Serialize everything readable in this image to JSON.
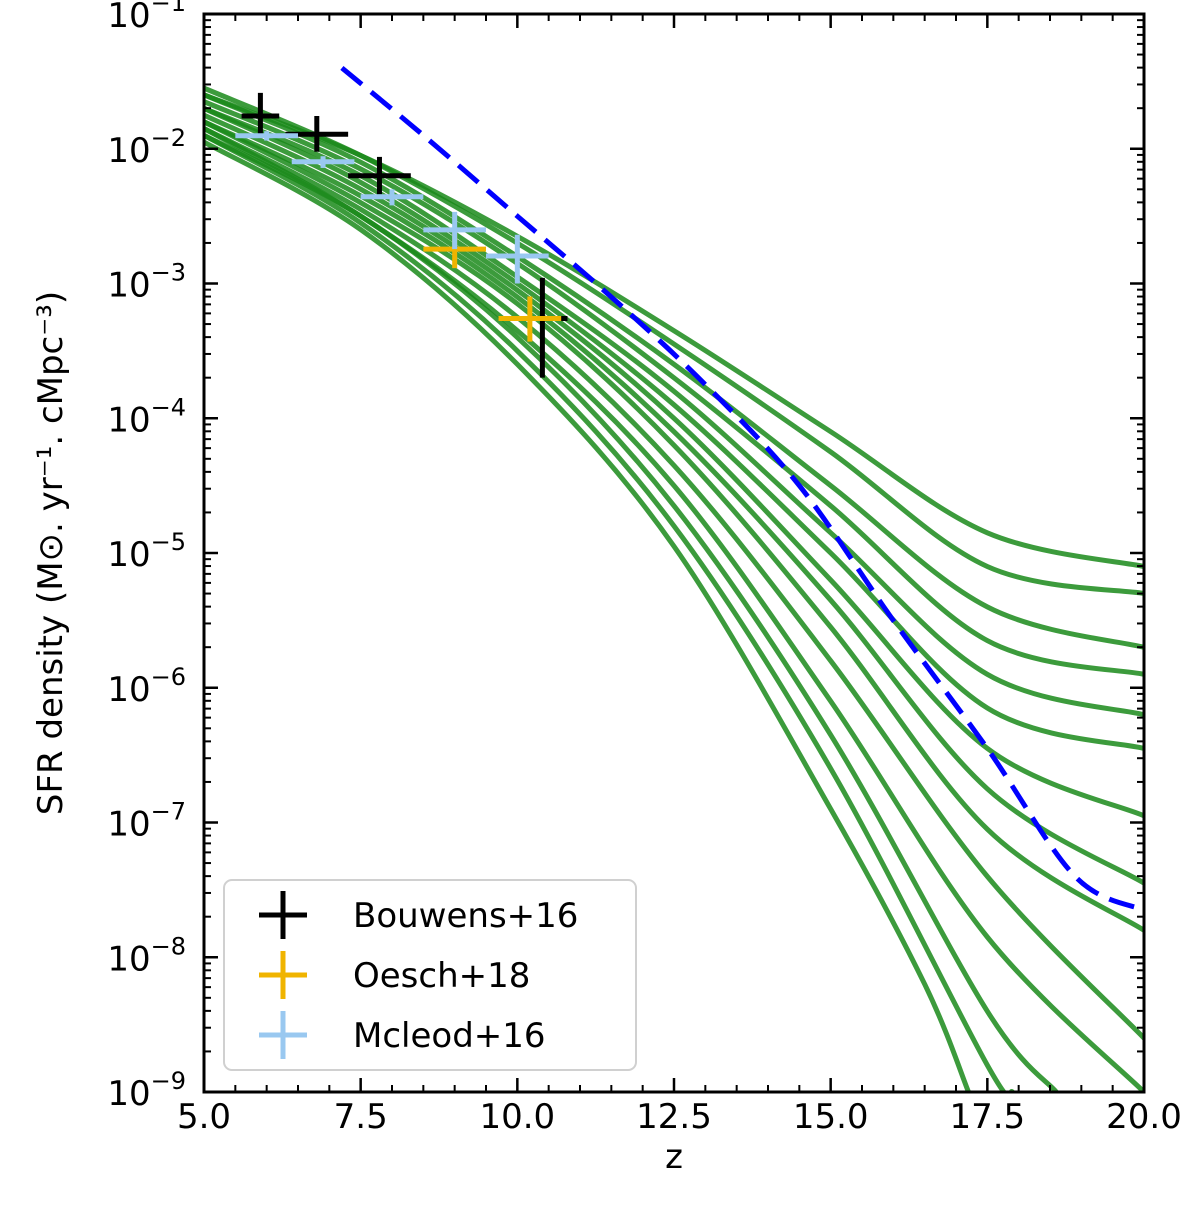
{
  "chart_data": {
    "type": "line",
    "xlabel": "z",
    "ylabel": "SFR density (M⊙. yr⁻¹. cMpc⁻³)",
    "xlim": [
      5.0,
      20.0
    ],
    "ylim_log10": [
      -9,
      -1
    ],
    "yscale": "log",
    "x_ticks": [
      "5.0",
      "7.5",
      "10.0",
      "12.5",
      "15.0",
      "17.5",
      "20.0"
    ],
    "y_ticks": [
      {
        "base": "10",
        "exp": "−1"
      },
      {
        "base": "10",
        "exp": "−2"
      },
      {
        "base": "10",
        "exp": "−3"
      },
      {
        "base": "10",
        "exp": "−4"
      },
      {
        "base": "10",
        "exp": "−5"
      },
      {
        "base": "10",
        "exp": "−6"
      },
      {
        "base": "10",
        "exp": "−7"
      },
      {
        "base": "10",
        "exp": "−8"
      },
      {
        "base": "10",
        "exp": "−9"
      }
    ],
    "legend_placement": "bottom-left",
    "model_color": "#1a8a1a",
    "model_curves_log10": [
      {
        "x": [
          5.0,
          7.5,
          10.0,
          12.5,
          15.0,
          17.5,
          20.0
        ],
        "y": [
          -1.6,
          -2.05,
          -2.65,
          -3.35,
          -4.1,
          -4.85,
          -5.1
        ]
      },
      {
        "x": [
          5.0,
          7.5,
          10.0,
          12.5,
          15.0,
          17.5,
          20.0
        ],
        "y": [
          -1.55,
          -2.05,
          -2.7,
          -3.45,
          -4.25,
          -5.1,
          -5.3
        ]
      },
      {
        "x": [
          5.0,
          7.5,
          10.0,
          12.5,
          15.0,
          17.5,
          20.0
        ],
        "y": [
          -1.6,
          -2.1,
          -2.8,
          -3.6,
          -4.5,
          -5.4,
          -5.7
        ]
      },
      {
        "x": [
          5.0,
          7.5,
          10.0,
          12.5,
          15.0,
          17.5,
          20.0
        ],
        "y": [
          -1.65,
          -2.15,
          -2.85,
          -3.7,
          -4.65,
          -5.65,
          -5.9
        ]
      },
      {
        "x": [
          5.0,
          7.5,
          10.0,
          12.5,
          15.0,
          17.5,
          20.0
        ],
        "y": [
          -1.7,
          -2.2,
          -2.95,
          -3.8,
          -4.85,
          -5.9,
          -6.2
        ]
      },
      {
        "x": [
          5.0,
          7.5,
          10.0,
          12.5,
          15.0,
          17.5,
          20.0
        ],
        "y": [
          -1.7,
          -2.25,
          -3.0,
          -3.9,
          -5.0,
          -6.15,
          -6.45
        ]
      },
      {
        "x": [
          5.0,
          7.5,
          10.0,
          12.5,
          15.0,
          17.5,
          20.0
        ],
        "y": [
          -1.75,
          -2.3,
          -3.05,
          -4.0,
          -5.2,
          -6.45,
          -6.95
        ]
      },
      {
        "x": [
          5.0,
          7.5,
          10.0,
          12.5,
          15.0,
          17.5,
          20.0
        ],
        "y": [
          -1.8,
          -2.35,
          -3.1,
          -4.1,
          -5.35,
          -6.75,
          -7.45
        ]
      },
      {
        "x": [
          5.0,
          7.5,
          10.0,
          12.5,
          15.0,
          17.5,
          20.0
        ],
        "y": [
          -1.8,
          -2.4,
          -3.15,
          -4.2,
          -5.55,
          -7.05,
          -7.8
        ]
      },
      {
        "x": [
          5.0,
          7.5,
          10.0,
          12.5,
          15.0,
          17.5,
          20.0
        ],
        "y": [
          -1.85,
          -2.45,
          -3.25,
          -4.35,
          -5.8,
          -7.4,
          -8.6
        ]
      },
      {
        "x": [
          5.0,
          7.5,
          10.0,
          12.5,
          15.0,
          17.5,
          20.0
        ],
        "y": [
          -1.85,
          -2.5,
          -3.35,
          -4.5,
          -6.1,
          -7.85,
          -9.0
        ]
      },
      {
        "x": [
          5.0,
          7.5,
          10.0,
          12.5,
          15.0,
          17.5,
          18.6
        ],
        "y": [
          -1.9,
          -2.5,
          -3.4,
          -4.65,
          -6.35,
          -8.4,
          -9.0
        ]
      },
      {
        "x": [
          5.0,
          7.5,
          10.0,
          12.5,
          15.0,
          17.5,
          17.9
        ],
        "y": [
          -1.9,
          -2.55,
          -3.5,
          -4.8,
          -6.6,
          -8.8,
          -9.0
        ]
      },
      {
        "x": [
          5.0,
          7.5,
          10.0,
          12.5,
          15.0,
          16.5,
          17.2
        ],
        "y": [
          -1.95,
          -2.6,
          -3.6,
          -4.95,
          -6.9,
          -8.2,
          -9.0
        ]
      }
    ],
    "reference_curve_log10": {
      "color": "#0000ff",
      "style": "dashed",
      "x": [
        7.2,
        8.5,
        10.0,
        11.5,
        13.0,
        14.5,
        16.0,
        17.5,
        18.9,
        20.0
      ],
      "y": [
        -1.4,
        -1.9,
        -2.5,
        -3.1,
        -3.75,
        -4.5,
        -5.5,
        -6.45,
        -7.4,
        -7.65
      ]
    },
    "observations": [
      {
        "name": "Bouwens+16",
        "color": "#000000",
        "points": [
          {
            "x": 5.9,
            "xerr": [
              0.3,
              0.3
            ],
            "y": 0.0175,
            "yerr": [
              0.012,
              0.026
            ]
          },
          {
            "x": 6.8,
            "xerr": [
              0.5,
              0.5
            ],
            "y": 0.0128,
            "yerr": [
              0.0095,
              0.0175
            ]
          },
          {
            "x": 7.8,
            "xerr": [
              0.5,
              0.5
            ],
            "y": 0.0063,
            "yerr": [
              0.0046,
              0.0087
            ]
          },
          {
            "x": 10.4,
            "xerr": [
              0.4,
              0.4
            ],
            "y": 0.00055,
            "yerr": [
              0.0002,
              0.0011
            ]
          }
        ]
      },
      {
        "name": "Oesch+18",
        "color": "#f0b400",
        "points": [
          {
            "x": 9.0,
            "xerr": [
              0.5,
              0.5
            ],
            "y": 0.0018,
            "yerr": [
              0.0013,
              0.0025
            ]
          },
          {
            "x": 10.2,
            "xerr": [
              0.5,
              0.5
            ],
            "y": 0.00055,
            "yerr": [
              0.00037,
              0.0008
            ]
          }
        ]
      },
      {
        "name": "Mcleod+16",
        "color": "#99c8f0",
        "points": [
          {
            "x": 6.0,
            "xerr": [
              0.5,
              0.5
            ],
            "y": 0.0125,
            "yerr": [
              0.0115,
              0.0135
            ]
          },
          {
            "x": 6.9,
            "xerr": [
              0.5,
              0.5
            ],
            "y": 0.008,
            "yerr": [
              0.0072,
              0.0088
            ]
          },
          {
            "x": 8.0,
            "xerr": [
              0.5,
              0.5
            ],
            "y": 0.0044,
            "yerr": [
              0.0038,
              0.005
            ]
          },
          {
            "x": 9.0,
            "xerr": [
              0.5,
              0.5
            ],
            "y": 0.0025,
            "yerr": [
              0.0018,
              0.0034
            ]
          },
          {
            "x": 10.0,
            "xerr": [
              0.5,
              0.5
            ],
            "y": 0.0016,
            "yerr": [
              0.001,
              0.0023
            ]
          }
        ]
      }
    ]
  }
}
